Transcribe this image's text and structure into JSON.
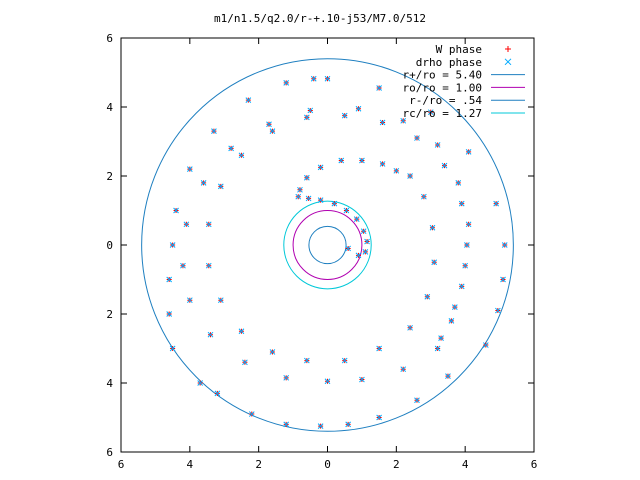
{
  "chart_data": {
    "type": "scatter",
    "title": "m1/n1.5/q2.0/r-+.10-j53/M7.0/512",
    "xlim": [
      -6,
      6
    ],
    "ylim": [
      -6,
      6
    ],
    "x_ticks": [
      -6,
      -4,
      -2,
      0,
      2,
      4,
      6
    ],
    "y_ticks": [
      -6,
      -4,
      -2,
      0,
      2,
      4,
      6
    ],
    "x_tick_labels": [
      "6",
      "4",
      "2",
      "0",
      "2",
      "4",
      "6"
    ],
    "y_tick_labels": [
      "6",
      "4",
      "2",
      "0",
      "2",
      "4",
      "6"
    ],
    "grid": false,
    "legend_position": "top-right",
    "series": [
      {
        "name": "W phase",
        "kind": "points",
        "marker": "plus",
        "color": "#ff0000",
        "points": [
          [
            0.0,
            4.82
          ],
          [
            1.5,
            4.55
          ],
          [
            3.0,
            3.85
          ],
          [
            4.1,
            2.7
          ],
          [
            4.9,
            1.2
          ],
          [
            5.15,
            0.0
          ],
          [
            5.1,
            -1.0
          ],
          [
            4.95,
            -1.9
          ],
          [
            4.6,
            -2.9
          ],
          [
            3.5,
            -3.8
          ],
          [
            2.6,
            -4.5
          ],
          [
            1.5,
            -5.0
          ],
          [
            0.6,
            -5.2
          ],
          [
            -0.2,
            -5.25
          ],
          [
            -1.2,
            -5.2
          ],
          [
            -2.2,
            -4.9
          ],
          [
            -3.2,
            -4.3
          ],
          [
            -3.7,
            -4.0
          ],
          [
            -4.5,
            -3.0
          ],
          [
            -4.6,
            -2.0
          ],
          [
            -4.6,
            -1.0
          ],
          [
            -4.5,
            0.0
          ],
          [
            -4.4,
            1.0
          ],
          [
            -4.0,
            2.2
          ],
          [
            -3.3,
            3.3
          ],
          [
            -2.3,
            4.2
          ],
          [
            -1.2,
            4.7
          ],
          [
            -0.4,
            4.82
          ],
          [
            3.2,
            -3.0
          ],
          [
            2.2,
            -3.6
          ],
          [
            1.0,
            -3.9
          ],
          [
            0.0,
            -3.95
          ],
          [
            -1.2,
            -3.85
          ],
          [
            -2.4,
            -3.4
          ],
          [
            -3.4,
            -2.6
          ],
          [
            -4.0,
            -1.6
          ],
          [
            -4.2,
            -0.6
          ],
          [
            -4.1,
            0.6
          ],
          [
            -3.6,
            1.8
          ],
          [
            -2.8,
            2.8
          ],
          [
            -1.7,
            3.5
          ],
          [
            -0.5,
            3.9
          ],
          [
            0.9,
            3.95
          ],
          [
            2.2,
            3.6
          ],
          [
            3.2,
            2.9
          ],
          [
            3.8,
            1.8
          ],
          [
            4.1,
            0.6
          ],
          [
            4.0,
            -0.6
          ],
          [
            3.7,
            -1.8
          ],
          [
            3.3,
            -2.7
          ],
          [
            3.6,
            -2.2
          ],
          [
            3.9,
            -1.2
          ],
          [
            4.05,
            0.0
          ],
          [
            3.9,
            1.2
          ],
          [
            3.4,
            2.3
          ],
          [
            2.6,
            3.1
          ],
          [
            1.6,
            3.55
          ],
          [
            0.5,
            3.75
          ],
          [
            -0.6,
            3.7
          ],
          [
            -1.6,
            3.3
          ],
          [
            -2.5,
            2.6
          ],
          [
            -3.1,
            1.7
          ],
          [
            -3.45,
            0.6
          ],
          [
            -3.45,
            -0.6
          ],
          [
            -3.1,
            -1.6
          ],
          [
            -2.5,
            -2.5
          ],
          [
            -1.6,
            -3.1
          ],
          [
            -0.6,
            -3.35
          ],
          [
            0.5,
            -3.35
          ],
          [
            1.5,
            -3.0
          ],
          [
            2.4,
            -2.4
          ],
          [
            2.9,
            -1.5
          ],
          [
            3.1,
            -0.5
          ],
          [
            3.05,
            0.5
          ],
          [
            2.8,
            1.4
          ],
          [
            2.4,
            2.0
          ],
          [
            2.0,
            2.15
          ],
          [
            1.6,
            2.35
          ],
          [
            1.0,
            2.45
          ],
          [
            0.4,
            2.45
          ],
          [
            -0.2,
            2.25
          ],
          [
            -0.6,
            1.95
          ],
          [
            -0.8,
            1.6
          ],
          [
            -0.85,
            1.4
          ],
          [
            -0.55,
            1.35
          ],
          [
            -0.2,
            1.3
          ],
          [
            0.2,
            1.2
          ],
          [
            0.55,
            1.0
          ],
          [
            0.85,
            0.75
          ],
          [
            1.05,
            0.4
          ],
          [
            1.15,
            0.1
          ],
          [
            1.1,
            -0.2
          ],
          [
            0.9,
            -0.3
          ],
          [
            0.6,
            -0.1
          ]
        ]
      },
      {
        "name": "drho phase",
        "kind": "points",
        "marker": "cross",
        "color": "#00aaff",
        "points": [
          [
            0.0,
            4.82
          ],
          [
            1.5,
            4.55
          ],
          [
            3.0,
            3.85
          ],
          [
            4.1,
            2.7
          ],
          [
            4.9,
            1.2
          ],
          [
            5.15,
            0.0
          ],
          [
            5.1,
            -1.0
          ],
          [
            4.95,
            -1.9
          ],
          [
            4.6,
            -2.9
          ],
          [
            3.5,
            -3.8
          ],
          [
            2.6,
            -4.5
          ],
          [
            1.5,
            -5.0
          ],
          [
            0.6,
            -5.2
          ],
          [
            -0.2,
            -5.25
          ],
          [
            -1.2,
            -5.2
          ],
          [
            -2.2,
            -4.9
          ],
          [
            -3.2,
            -4.3
          ],
          [
            -3.7,
            -4.0
          ],
          [
            -4.5,
            -3.0
          ],
          [
            -4.6,
            -2.0
          ],
          [
            -4.6,
            -1.0
          ],
          [
            -4.5,
            0.0
          ],
          [
            -4.4,
            1.0
          ],
          [
            -4.0,
            2.2
          ],
          [
            -3.3,
            3.3
          ],
          [
            -2.3,
            4.2
          ],
          [
            -1.2,
            4.7
          ],
          [
            -0.4,
            4.82
          ],
          [
            3.2,
            -3.0
          ],
          [
            2.2,
            -3.6
          ],
          [
            1.0,
            -3.9
          ],
          [
            0.0,
            -3.95
          ],
          [
            -1.2,
            -3.85
          ],
          [
            -2.4,
            -3.4
          ],
          [
            -3.4,
            -2.6
          ],
          [
            -4.0,
            -1.6
          ],
          [
            -4.2,
            -0.6
          ],
          [
            -4.1,
            0.6
          ],
          [
            -3.6,
            1.8
          ],
          [
            -2.8,
            2.8
          ],
          [
            -1.7,
            3.5
          ],
          [
            -0.5,
            3.9
          ],
          [
            0.9,
            3.95
          ],
          [
            2.2,
            3.6
          ],
          [
            3.2,
            2.9
          ],
          [
            3.8,
            1.8
          ],
          [
            4.1,
            0.6
          ],
          [
            4.0,
            -0.6
          ],
          [
            3.7,
            -1.8
          ],
          [
            3.3,
            -2.7
          ],
          [
            3.6,
            -2.2
          ],
          [
            3.9,
            -1.2
          ],
          [
            4.05,
            0.0
          ],
          [
            3.9,
            1.2
          ],
          [
            3.4,
            2.3
          ],
          [
            2.6,
            3.1
          ],
          [
            1.6,
            3.55
          ],
          [
            0.5,
            3.75
          ],
          [
            -0.6,
            3.7
          ],
          [
            -1.6,
            3.3
          ],
          [
            -2.5,
            2.6
          ],
          [
            -3.1,
            1.7
          ],
          [
            -3.45,
            0.6
          ],
          [
            -3.45,
            -0.6
          ],
          [
            -3.1,
            -1.6
          ],
          [
            -2.5,
            -2.5
          ],
          [
            -1.6,
            -3.1
          ],
          [
            -0.6,
            -3.35
          ],
          [
            0.5,
            -3.35
          ],
          [
            1.5,
            -3.0
          ],
          [
            2.4,
            -2.4
          ],
          [
            2.9,
            -1.5
          ],
          [
            3.1,
            -0.5
          ],
          [
            3.05,
            0.5
          ],
          [
            2.8,
            1.4
          ],
          [
            2.4,
            2.0
          ],
          [
            2.0,
            2.15
          ],
          [
            1.6,
            2.35
          ],
          [
            1.0,
            2.45
          ],
          [
            0.4,
            2.45
          ],
          [
            -0.2,
            2.25
          ],
          [
            -0.6,
            1.95
          ],
          [
            -0.8,
            1.6
          ],
          [
            -0.85,
            1.4
          ],
          [
            -0.55,
            1.35
          ],
          [
            -0.2,
            1.3
          ],
          [
            0.2,
            1.2
          ],
          [
            0.55,
            1.0
          ],
          [
            0.85,
            0.75
          ],
          [
            1.05,
            0.4
          ],
          [
            1.15,
            0.1
          ],
          [
            1.1,
            -0.2
          ],
          [
            0.9,
            -0.3
          ],
          [
            0.6,
            -0.1
          ]
        ]
      },
      {
        "name": "r+/ro = 5.40",
        "kind": "circle",
        "radius": 5.4,
        "color": "#1e7fc0"
      },
      {
        "name": "ro/ro = 1.00",
        "kind": "circle",
        "radius": 1.0,
        "color": "#b000b0"
      },
      {
        "name": "r-/ro = .54",
        "kind": "circle",
        "radius": 0.54,
        "color": "#1e7fc0"
      },
      {
        "name": "rc/ro = 1.27",
        "kind": "circle",
        "radius": 1.27,
        "color": "#00c8d8"
      }
    ]
  }
}
